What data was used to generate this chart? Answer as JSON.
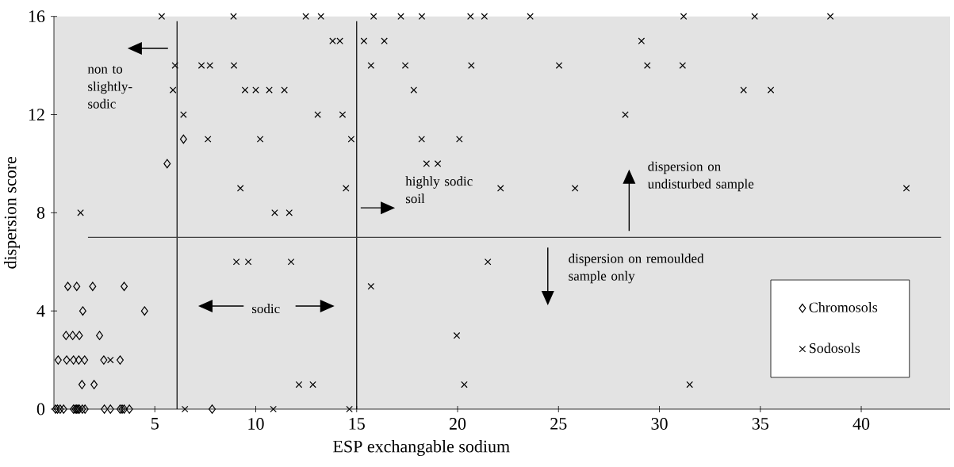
{
  "chart_data": {
    "type": "scatter",
    "xlabel": "ESP exchangable sodium",
    "ylabel": "dispersion score",
    "xlim": [
      0,
      44.4
    ],
    "ylim": [
      0,
      16
    ],
    "xticks": [
      5,
      10,
      15,
      20,
      25,
      30,
      35,
      40
    ],
    "yticks": [
      0,
      4,
      8,
      12,
      16
    ],
    "legend": "bottom right",
    "series": [
      {
        "name": "Chromosols",
        "color": "#000000",
        "marker": "diamond",
        "x": [
          0.69,
          1.13,
          1.92,
          3.48,
          1.43,
          4.49,
          0.6,
          0.93,
          1.26,
          2.26,
          0.21,
          0.63,
          0.97,
          1.23,
          1.52,
          2.47,
          3.28,
          1.39,
          1.99,
          0.08,
          0.18,
          0.31,
          0.48,
          0.97,
          1.06,
          1.13,
          1.19,
          1.26,
          1.41,
          1.54,
          2.5,
          2.8,
          3.28,
          3.38,
          3.48,
          3.74,
          7.84,
          6.42,
          5.61
        ],
        "values": [
          5,
          5,
          5,
          5,
          4,
          4,
          3,
          3,
          3,
          3,
          2,
          2,
          2,
          2,
          2,
          2,
          2,
          1,
          1,
          0,
          0,
          0,
          0,
          0,
          0,
          0,
          0,
          0,
          0,
          0,
          0,
          0,
          0,
          0,
          0,
          0,
          0,
          11,
          10
        ]
      },
      {
        "name": "Sodosols",
        "color": "#000000",
        "marker": "cross",
        "x": [
          5.34,
          8.9,
          12.48,
          13.23,
          15.84,
          17.19,
          18.23,
          20.64,
          21.33,
          23.6,
          31.2,
          34.72,
          38.47,
          13.81,
          14.17,
          15.36,
          16.37,
          29.11,
          6.0,
          7.31,
          7.73,
          8.92,
          15.71,
          17.41,
          20.68,
          25.03,
          29.4,
          31.15,
          5.9,
          9.47,
          10.0,
          10.67,
          11.42,
          17.83,
          34.17,
          35.52,
          6.42,
          13.07,
          14.3,
          28.31,
          7.63,
          10.22,
          14.73,
          18.22,
          20.09,
          18.46,
          19.02,
          9.24,
          14.47,
          22.13,
          25.82,
          42.24,
          1.32,
          10.94,
          11.66,
          9.04,
          9.63,
          11.75,
          21.5,
          15.71,
          19.96,
          2.8,
          12.14,
          12.83,
          20.33,
          31.5,
          6.49,
          10.87,
          14.64
        ],
        "values": [
          16,
          16,
          16,
          16,
          16,
          16,
          16,
          16,
          16,
          16,
          16,
          16,
          16,
          15,
          15,
          15,
          15,
          15,
          14,
          14,
          14,
          14,
          14,
          14,
          14,
          14,
          14,
          14,
          13,
          13,
          13,
          13,
          13,
          13,
          13,
          13,
          12,
          12,
          12,
          12,
          11,
          11,
          11,
          11,
          11,
          10,
          10,
          9,
          9,
          9,
          9,
          9,
          8,
          8,
          8,
          6,
          6,
          6,
          6,
          5,
          3,
          2,
          1,
          1,
          1,
          1,
          0,
          0,
          0
        ]
      }
    ],
    "ref_lines": [
      {
        "axis": "x",
        "value": 6.1
      },
      {
        "axis": "x",
        "value": 15
      },
      {
        "axis": "y",
        "value": 7
      }
    ],
    "annotations": [
      "non to slightly-sodic",
      "sodic",
      "highly sodic soil",
      "dispersion on undisturbed sample",
      "dispersion on remoulded sample only"
    ]
  }
}
